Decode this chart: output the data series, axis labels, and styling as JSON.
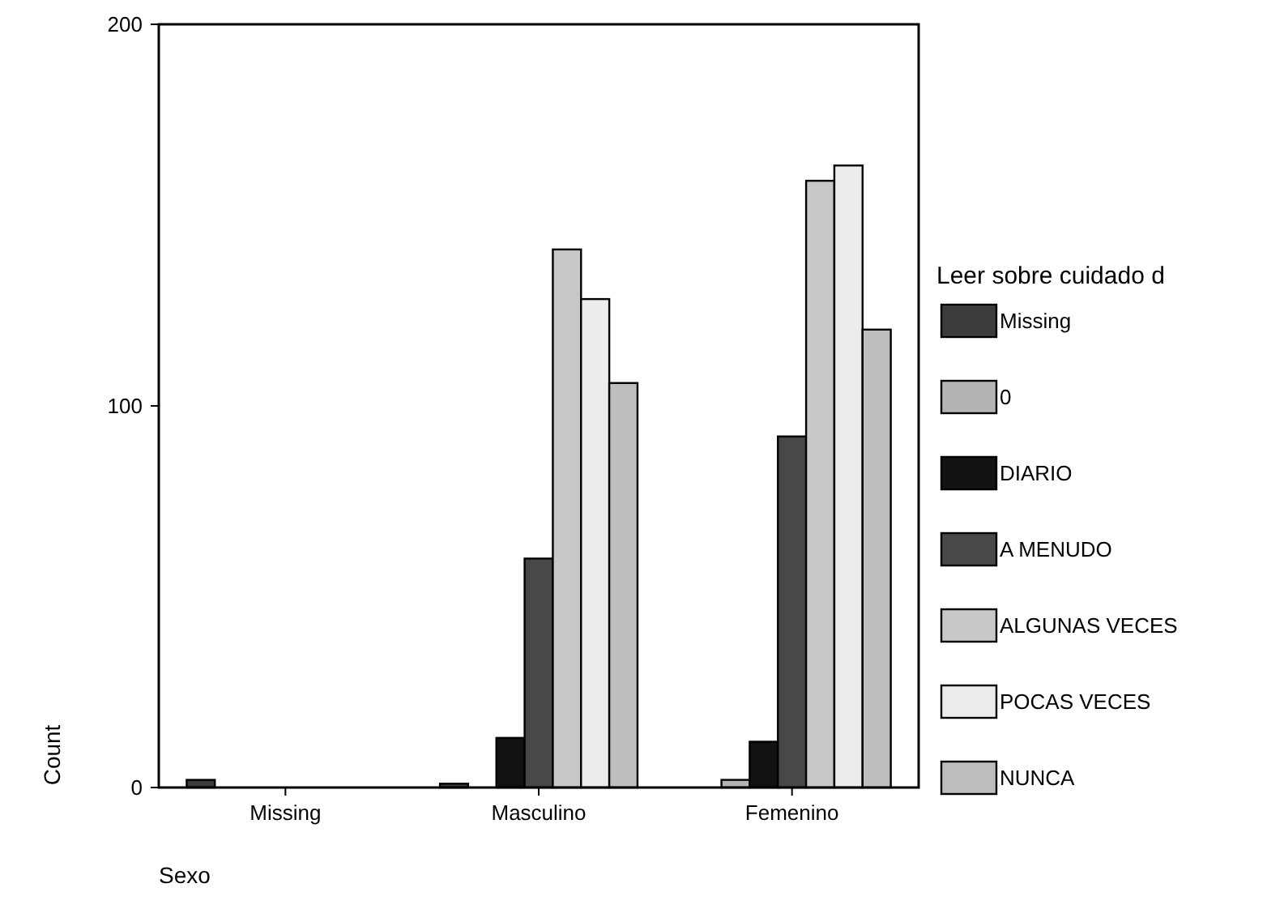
{
  "chart_data": {
    "type": "bar",
    "xlabel": "Sexo",
    "ylabel": "Count",
    "legend_title": "Leer sobre cuidado d",
    "categories": [
      "Missing",
      "Masculino",
      "Femenino"
    ],
    "series": [
      {
        "name": "Missing",
        "color": "#3c3c3c",
        "values": [
          2,
          1,
          null
        ]
      },
      {
        "name": "0",
        "color": "#b4b4b4",
        "values": [
          null,
          null,
          2
        ]
      },
      {
        "name": "DIARIO",
        "color": "#121212",
        "values": [
          null,
          13,
          12
        ]
      },
      {
        "name": "A MENUDO",
        "color": "#484848",
        "values": [
          null,
          60,
          92
        ]
      },
      {
        "name": "ALGUNAS VECES",
        "color": "#c8c8c8",
        "values": [
          null,
          141,
          159
        ]
      },
      {
        "name": "POCAS VECES",
        "color": "#ececec",
        "values": [
          null,
          128,
          163
        ]
      },
      {
        "name": "NUNCA",
        "color": "#bebebe",
        "values": [
          null,
          106,
          120
        ]
      }
    ],
    "ylim": [
      0,
      200
    ],
    "yticks": [
      0,
      100,
      200
    ],
    "grid": false,
    "legend": "right"
  }
}
